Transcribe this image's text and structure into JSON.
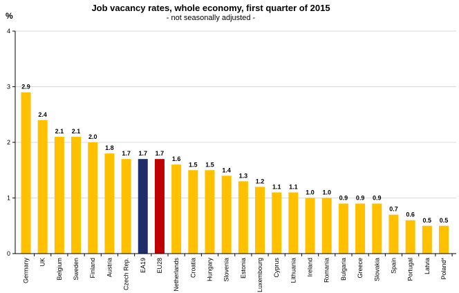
{
  "chart_data": {
    "type": "bar",
    "title": "Job vacancy rates, whole economy, first quarter of 2015",
    "subtitle": "- not seasonally adjusted -",
    "ylabel": "%",
    "xlabel": "",
    "ylim": [
      0,
      4
    ],
    "yticks": [
      "0",
      "1",
      "2",
      "3",
      "4"
    ],
    "grid": true,
    "categories": [
      "Germany",
      "UK",
      "Belgium",
      "Sweden",
      "Finland",
      "Austria",
      "Czech Rep.",
      "EA19",
      "EU28",
      "Netherlands",
      "Croatia",
      "Hungary",
      "Slovenia",
      "Estonia",
      "Luxembourg",
      "Cyprus",
      "Lithuania",
      "Ireland",
      "Romania",
      "Bulgaria",
      "Greece",
      "Slovakia",
      "Spain",
      "Portugal",
      "Latvia",
      "Poland*"
    ],
    "values": [
      2.9,
      2.4,
      2.1,
      2.1,
      2.0,
      1.8,
      1.7,
      1.7,
      1.7,
      1.6,
      1.5,
      1.5,
      1.4,
      1.3,
      1.2,
      1.1,
      1.1,
      1.0,
      1.0,
      0.9,
      0.9,
      0.9,
      0.7,
      0.6,
      0.5,
      0.5
    ],
    "value_labels": [
      "2.9",
      "2.4",
      "2.1",
      "2.1",
      "2.0",
      "1.8",
      "1.7",
      "1.7",
      "1.7",
      "1.6",
      "1.5",
      "1.5",
      "1.4",
      "1.3",
      "1.2",
      "1.1",
      "1.1",
      "1.0",
      "1.0",
      "0.9",
      "0.9",
      "0.9",
      "0.7",
      "0.6",
      "0.5",
      "0.5"
    ],
    "colors": {
      "default": "#FFC000",
      "EA19": "#1F2D6B",
      "EU28": "#C00000"
    }
  }
}
